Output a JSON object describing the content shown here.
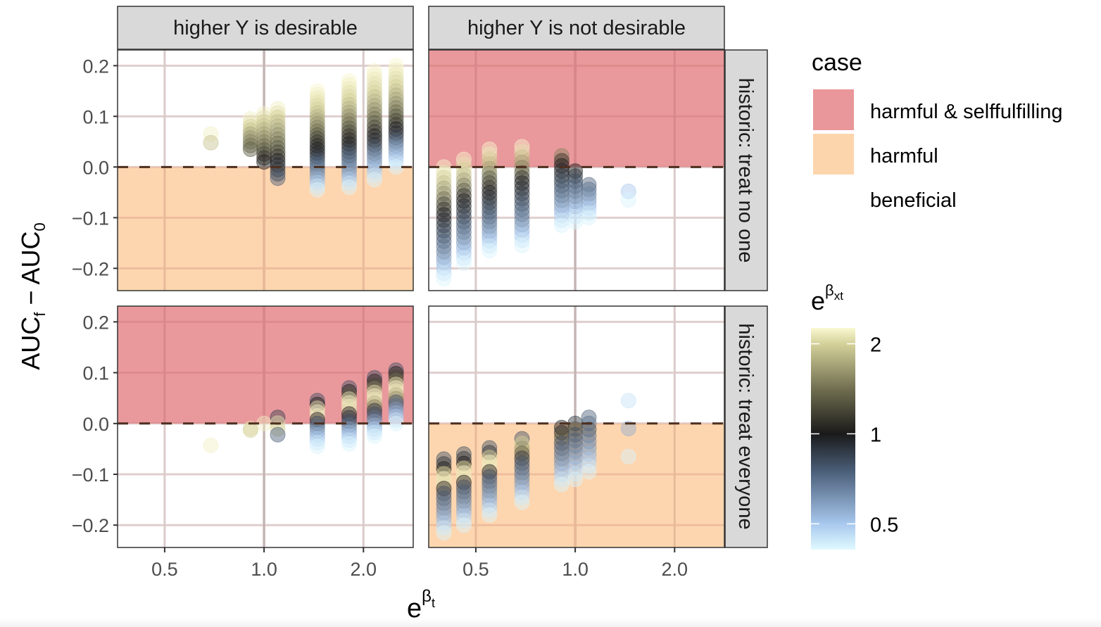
{
  "chart_data": {
    "type": "scatter",
    "title": "",
    "xlabel": "e^β_t",
    "xlabel_base": "e",
    "xlabel_sup": "β",
    "xlabel_sub": "t",
    "ylabel": "AUC_f − AUC_0",
    "ylabel_parts": {
      "a": "AUC",
      "a_sub": "f",
      "minus": " − ",
      "b": "AUC",
      "b_sub": "0"
    },
    "x_scale": "log2",
    "x_ticks": [
      0.5,
      1.0,
      2.0
    ],
    "x_tick_labels": [
      "0.5",
      "1.0",
      "2.0"
    ],
    "x_range": [
      0.36,
      2.83
    ],
    "y_ticks": [
      -0.2,
      -0.1,
      0.0,
      0.1,
      0.2
    ],
    "y_tick_labels": [
      "−0.2",
      "−0.1",
      "0.0",
      "0.1",
      "0.2"
    ],
    "y_range": [
      -0.244,
      0.231
    ],
    "grid": true,
    "reference_lines": {
      "vertical_x": 1.0,
      "horizontal_dashed_y": 0.0
    },
    "column_facets": [
      "higher Y is desirable",
      "higher Y is not desirable"
    ],
    "row_facets": [
      "historic: treat no one",
      "historic: treat everyone"
    ],
    "case_legend": {
      "title": "case",
      "placement": "right-top",
      "entries": [
        {
          "label": "harmful & selffulfilling",
          "color": "#E9979A"
        },
        {
          "label": "harmful",
          "color": "#FDD5AD"
        },
        {
          "label": "beneficial",
          "color": "#FFFFFF"
        }
      ]
    },
    "color_legend": {
      "title_base": "e",
      "title_sup": "β",
      "title_sub": "xt",
      "placement": "right-bottom",
      "scale": "log",
      "range": [
        0.41,
        2.26
      ],
      "ticks": [
        2,
        1,
        0.5
      ],
      "tick_labels": [
        "2",
        "1",
        "0.5"
      ],
      "stops": [
        {
          "value": 2.26,
          "color": "#FAF8D2"
        },
        {
          "value": 2.0,
          "color": "#D4D19A"
        },
        {
          "value": 1.4,
          "color": "#6E6C4E"
        },
        {
          "value": 1.0,
          "color": "#1A1A1A"
        },
        {
          "value": 0.75,
          "color": "#4A5E78"
        },
        {
          "value": 0.5,
          "color": "#A8C8EE"
        },
        {
          "value": 0.41,
          "color": "#E0FAFF"
        }
      ]
    },
    "panels": [
      {
        "col": 0,
        "row": 0,
        "shading": {
          "above_zero": "beneficial",
          "below_zero": "harmful"
        },
        "columns": [
          {
            "x": 0.69,
            "top": 0.065,
            "bottom": 0.048,
            "colors": [
              2.2,
              1.9
            ]
          },
          {
            "x": 0.91,
            "top": 0.095,
            "bottom": 0.035,
            "colors": [
              2.2,
              2.1,
              2.0,
              1.9,
              1.7,
              1.6,
              1.5,
              1.4,
              1.3
            ]
          },
          {
            "x": 1.0,
            "top": 0.105,
            "bottom": 0.01,
            "colors": [
              2.2,
              2.1,
              2.0,
              1.9,
              1.8,
              1.7,
              1.6,
              1.5,
              1.4,
              1.3,
              1.2,
              1.1,
              1.0
            ]
          },
          {
            "x": 1.1,
            "top": 0.115,
            "bottom": -0.022,
            "colors": [
              2.2,
              2.1,
              2.0,
              1.9,
              1.8,
              1.7,
              1.6,
              1.5,
              1.4,
              1.3,
              1.2,
              1.1,
              1.0,
              0.95,
              0.9,
              0.85,
              0.75
            ]
          },
          {
            "x": 1.45,
            "top": 0.15,
            "bottom": -0.045,
            "colors": [
              2.25,
              2.2,
              2.15,
              2.1,
              2.05,
              2.0,
              1.9,
              1.8,
              1.7,
              1.6,
              1.5,
              1.4,
              1.3,
              1.2,
              1.1,
              1.05,
              1.0,
              0.95,
              0.9,
              0.8,
              0.75,
              0.7,
              0.65,
              0.6,
              0.55,
              0.5,
              0.45,
              0.42
            ]
          },
          {
            "x": 1.81,
            "top": 0.17,
            "bottom": -0.04,
            "colors": [
              2.25,
              2.2,
              2.15,
              2.1,
              2.05,
              2.0,
              1.9,
              1.8,
              1.7,
              1.6,
              1.5,
              1.4,
              1.3,
              1.2,
              1.1,
              1.05,
              1.0,
              0.95,
              0.85,
              0.8,
              0.75,
              0.7,
              0.65,
              0.6,
              0.55,
              0.5,
              0.45,
              0.42
            ]
          },
          {
            "x": 2.16,
            "top": 0.19,
            "bottom": -0.025,
            "colors": [
              2.25,
              2.2,
              2.15,
              2.1,
              2.05,
              2.0,
              1.9,
              1.8,
              1.7,
              1.6,
              1.5,
              1.4,
              1.3,
              1.2,
              1.1,
              1.0,
              0.95,
              0.9,
              0.8,
              0.7,
              0.65,
              0.6,
              0.55,
              0.5,
              0.45,
              0.42
            ]
          },
          {
            "x": 2.51,
            "top": 0.2,
            "bottom": 0.0,
            "colors": [
              2.25,
              2.2,
              2.15,
              2.1,
              2.05,
              2.0,
              1.9,
              1.8,
              1.7,
              1.6,
              1.5,
              1.4,
              1.3,
              1.2,
              1.1,
              1.0,
              0.95,
              0.85,
              0.75,
              0.65,
              0.6,
              0.55,
              0.5,
              0.45,
              0.42
            ]
          }
        ]
      },
      {
        "col": 1,
        "row": 0,
        "shading": {
          "above_zero": "harmful & selffulfilling",
          "below_zero": "beneficial"
        },
        "columns": [
          {
            "x": 0.4,
            "top": 0.0,
            "bottom": -0.22,
            "colors": [
              2.25,
              2.1,
              2.0,
              1.9,
              1.7,
              1.6,
              1.4,
              1.2,
              1.1,
              1.0,
              0.95,
              0.9,
              0.85,
              0.8,
              0.75,
              0.7,
              0.65,
              0.6,
              0.55,
              0.5,
              0.45,
              0.42
            ]
          },
          {
            "x": 0.46,
            "top": 0.015,
            "bottom": -0.19,
            "colors": [
              2.25,
              2.1,
              2.0,
              1.9,
              1.7,
              1.5,
              1.3,
              1.1,
              1.0,
              0.95,
              0.9,
              0.85,
              0.8,
              0.75,
              0.7,
              0.65,
              0.6,
              0.55,
              0.5,
              0.45,
              0.42
            ]
          },
          {
            "x": 0.55,
            "top": 0.035,
            "bottom": -0.165,
            "colors": [
              2.25,
              2.15,
              2.0,
              1.9,
              1.7,
              1.5,
              1.3,
              1.2,
              1.1,
              1.0,
              0.95,
              0.9,
              0.85,
              0.8,
              0.75,
              0.7,
              0.65,
              0.6,
              0.55,
              0.5,
              0.45,
              0.42
            ]
          },
          {
            "x": 0.69,
            "top": 0.04,
            "bottom": -0.155,
            "colors": [
              2.25,
              2.1,
              1.9,
              1.7,
              1.5,
              1.3,
              1.1,
              1.0,
              0.95,
              0.9,
              0.85,
              0.8,
              0.75,
              0.7,
              0.65,
              0.6,
              0.55,
              0.5,
              0.45,
              0.42
            ]
          },
          {
            "x": 0.91,
            "top": 0.022,
            "bottom": -0.115,
            "colors": [
              1.5,
              1.1,
              1.0,
              0.95,
              0.9,
              0.85,
              0.8,
              0.75,
              0.7,
              0.65,
              0.6,
              0.55,
              0.5,
              0.45,
              0.42
            ]
          },
          {
            "x": 1.0,
            "top": -0.008,
            "bottom": -0.108,
            "colors": [
              1.0,
              0.9,
              0.8,
              0.75,
              0.7,
              0.65,
              0.6,
              0.55,
              0.5,
              0.45,
              0.42
            ]
          },
          {
            "x": 1.1,
            "top": -0.035,
            "bottom": -0.1,
            "colors": [
              0.75,
              0.7,
              0.65,
              0.6,
              0.55,
              0.5,
              0.45,
              0.42
            ]
          },
          {
            "x": 1.45,
            "top": -0.048,
            "bottom": -0.065,
            "colors": [
              0.5,
              0.42
            ]
          }
        ]
      },
      {
        "col": 0,
        "row": 1,
        "shading": {
          "above_zero": "harmful & selffulfilling",
          "below_zero": "beneficial"
        },
        "columns": [
          {
            "x": 0.69,
            "top": -0.043,
            "bottom": -0.043,
            "colors": [
              2.2
            ]
          },
          {
            "x": 0.91,
            "top": -0.01,
            "bottom": -0.013,
            "colors": [
              2.1,
              2.0
            ]
          },
          {
            "x": 1.0,
            "top": 0.0,
            "bottom": 0.0,
            "colors": [
              2.2
            ]
          },
          {
            "x": 1.1,
            "top": 0.012,
            "bottom": -0.022,
            "colors": [
              0.85,
              2.1,
              2.0,
              0.75
            ]
          },
          {
            "x": 1.45,
            "top": 0.045,
            "bottom": -0.045,
            "colors": [
              0.8,
              1.0,
              2.1,
              2.2,
              2.15,
              1.0,
              0.8,
              0.7,
              0.6,
              0.55,
              0.5,
              0.45,
              0.42
            ]
          },
          {
            "x": 1.81,
            "top": 0.07,
            "bottom": -0.04,
            "colors": [
              0.8,
              1.0,
              1.3,
              2.1,
              2.2,
              2.15,
              2.1,
              1.0,
              0.9,
              0.8,
              0.7,
              0.6,
              0.55,
              0.5,
              0.45,
              0.42
            ]
          },
          {
            "x": 2.16,
            "top": 0.09,
            "bottom": -0.025,
            "colors": [
              0.8,
              1.0,
              1.2,
              1.5,
              2.1,
              2.2,
              2.15,
              1.8,
              1.5,
              0.9,
              0.8,
              0.7,
              0.6,
              0.55,
              0.5,
              0.45,
              0.42
            ]
          },
          {
            "x": 2.51,
            "top": 0.105,
            "bottom": 0.0,
            "colors": [
              0.8,
              1.0,
              1.2,
              1.4,
              2.1,
              2.2,
              2.15,
              1.8,
              1.6,
              0.8,
              0.7,
              0.6,
              0.55,
              0.5,
              0.45,
              0.42
            ]
          }
        ]
      },
      {
        "col": 1,
        "row": 1,
        "shading": {
          "above_zero": "beneficial",
          "below_zero": "harmful"
        },
        "columns": [
          {
            "x": 0.4,
            "top": -0.07,
            "bottom": -0.215,
            "colors": [
              0.8,
              0.9,
              1.0,
              2.0,
              2.2,
              2.1,
              1.0,
              0.8,
              0.75,
              0.7,
              0.65,
              0.6,
              0.55,
              0.5,
              0.45,
              0.42
            ]
          },
          {
            "x": 0.46,
            "top": -0.06,
            "bottom": -0.2,
            "colors": [
              0.8,
              0.9,
              1.0,
              2.0,
              2.2,
              2.15,
              1.0,
              0.8,
              0.75,
              0.7,
              0.65,
              0.6,
              0.55,
              0.5,
              0.45,
              0.42
            ]
          },
          {
            "x": 0.55,
            "top": -0.048,
            "bottom": -0.18,
            "colors": [
              0.8,
              0.9,
              2.0,
              2.2,
              2.15,
              1.0,
              0.8,
              0.75,
              0.7,
              0.65,
              0.6,
              0.55,
              0.5,
              0.45,
              0.42
            ]
          },
          {
            "x": 0.69,
            "top": -0.03,
            "bottom": -0.155,
            "colors": [
              0.8,
              2.0,
              1.6,
              1.3,
              0.9,
              0.8,
              0.75,
              0.7,
              0.65,
              0.6,
              0.55,
              0.5,
              0.45,
              0.42
            ]
          },
          {
            "x": 0.91,
            "top": -0.008,
            "bottom": -0.12,
            "colors": [
              1.0,
              0.95,
              1.3,
              0.8,
              0.75,
              0.7,
              0.65,
              0.6,
              0.55,
              0.5,
              0.45,
              0.42
            ]
          },
          {
            "x": 1.0,
            "top": 0.0,
            "bottom": -0.11,
            "colors": [
              0.9,
              1.3,
              0.8,
              0.75,
              0.7,
              0.65,
              0.6,
              0.55,
              0.5,
              0.45,
              0.42
            ]
          },
          {
            "x": 1.1,
            "top": 0.012,
            "bottom": -0.095,
            "colors": [
              0.75,
              0.7,
              0.8,
              0.7,
              0.65,
              0.6,
              0.55,
              0.5,
              0.45,
              0.42
            ]
          },
          {
            "x": 1.45,
            "top": 0.045,
            "bottom": -0.065,
            "colors": [
              0.45,
              0.55,
              0.42
            ]
          }
        ]
      }
    ]
  }
}
